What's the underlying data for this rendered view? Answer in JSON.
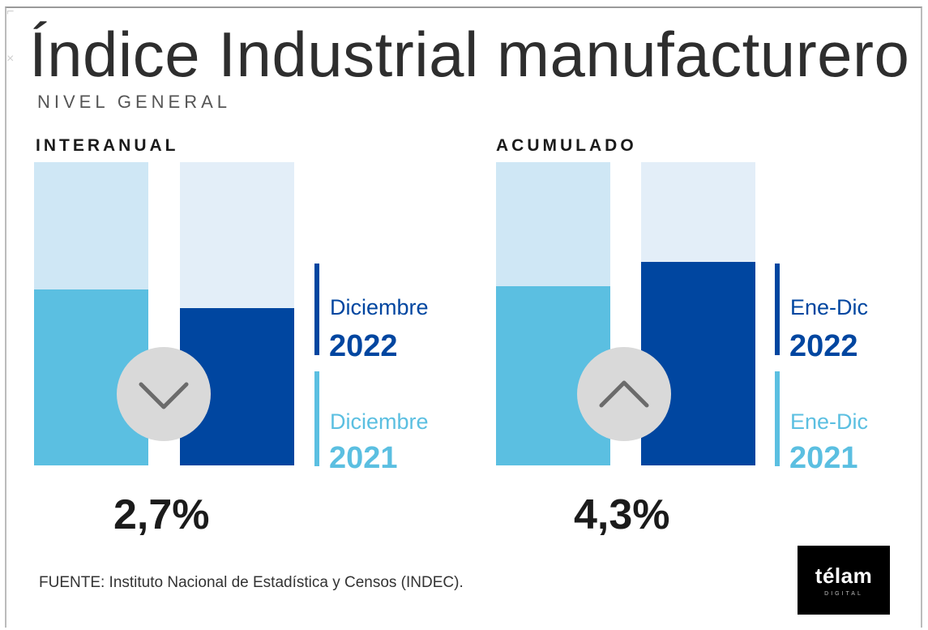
{
  "title": "Índice Industrial manufacturero",
  "subtitle": "NIVEL GENERAL",
  "source": "FUENTE: Instituto Nacional de Estadística y Censos (INDEC).",
  "logo": {
    "text": "télam",
    "sub": "DIGITAL"
  },
  "colors": {
    "light_blue": "#5bbfe1",
    "dark_blue": "#0046a0",
    "light_blue_bg": "#cfe7f5",
    "dark_blue_bg": "#e3eef8",
    "circle": "#d9d9d9"
  },
  "chart_data": [
    {
      "type": "bar",
      "title": "INTERANUAL",
      "series": [
        {
          "name": "Diciembre 2021",
          "level": 0.58,
          "color": "#5bbfe1",
          "bg": "#cfe7f5"
        },
        {
          "name": "Diciembre 2022",
          "level": 0.52,
          "color": "#0046a0",
          "bg": "#e3eef8"
        }
      ],
      "legend": [
        {
          "month": "Diciembre",
          "year": "2022",
          "color": "#0046a0"
        },
        {
          "month": "Diciembre",
          "year": "2021",
          "color": "#5bbfe1"
        }
      ],
      "change_indicator": "down-arrow-icon",
      "value_label": "2,7%"
    },
    {
      "type": "bar",
      "title": "ACUMULADO",
      "series": [
        {
          "name": "Ene-Dic 2021",
          "level": 0.59,
          "color": "#5bbfe1",
          "bg": "#cfe7f5"
        },
        {
          "name": "Ene-Dic 2022",
          "level": 0.67,
          "color": "#0046a0",
          "bg": "#e3eef8"
        }
      ],
      "legend": [
        {
          "month": "Ene-Dic",
          "year": "2022",
          "color": "#0046a0"
        },
        {
          "month": "Ene-Dic",
          "year": "2021",
          "color": "#5bbfe1"
        }
      ],
      "change_indicator": "up-arrow-icon",
      "value_label": "4,3%"
    }
  ]
}
